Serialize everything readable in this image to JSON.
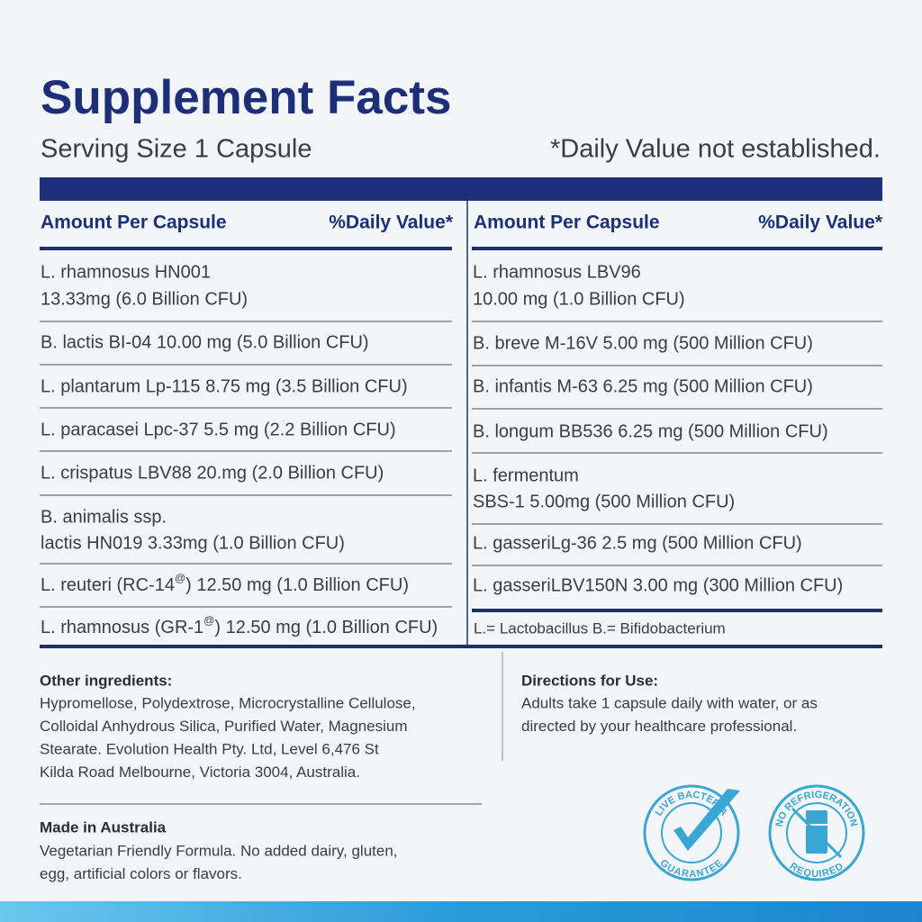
{
  "title": "Supplement Facts",
  "serving_size": "Serving Size 1 Capsule",
  "dv_note": "*Daily Value not established.",
  "columns": [
    {
      "header_amount": "Amount Per Capsule",
      "header_dv": "%Daily Value*",
      "rows": [
        [
          "L. rhamnosus HN001",
          "13.33mg (6.0 Billion CFU)"
        ],
        [
          "B. lactis BI-04 10.00 mg (5.0 Billion CFU)"
        ],
        [
          "L. plantarum Lp-115 8.75 mg (3.5 Billion CFU)"
        ],
        [
          "L. paracasei Lpc-37 5.5 mg (2.2 Billion CFU)"
        ],
        [
          "L. crispatus LBV88 20.mg (2.0 Billion CFU)"
        ],
        [
          "B. animalis ssp.",
          "lactis HN019 3.33mg (1.0 Billion CFU)"
        ],
        [
          [
            "L. reuteri (RC-14",
            "@",
            ") 12.50 mg (1.0 Billion CFU)"
          ]
        ],
        [
          [
            "L. rhamnosus (GR-1",
            "@",
            ") 12.50 mg (1.0 Billion CFU)"
          ]
        ]
      ]
    },
    {
      "header_amount": "Amount Per Capsule",
      "header_dv": "%Daily Value*",
      "rows": [
        [
          "L. rhamnosus LBV96",
          "10.00 mg (1.0 Billion CFU)"
        ],
        [
          "B. breve M-16V 5.00 mg (500 Million CFU)"
        ],
        [
          "B. infantis M-63 6.25 mg (500 Million CFU)"
        ],
        [
          "B. longum BB536 6.25 mg (500 Million CFU)"
        ],
        [
          "L. fermentum",
          "SBS-1 5.00mg (500 Million CFU)"
        ],
        [
          "L. gasseriLg-36 2.5 mg (500 Million CFU)"
        ],
        [
          "L. gasseriLBV150N 3.00 mg (300 Million CFU)"
        ]
      ]
    }
  ],
  "legend": "L.= Lactobacillus  B.= Bifidobacterium",
  "other_ingredients": {
    "heading": "Other ingredients:",
    "lines": [
      "Hypromellose, Polydextrose, Microcrystalline Cellulose,",
      "Colloidal Anhydrous Silica, Purified Water, Magnesium",
      "Stearate. Evolution Health Pty. Ltd, Level 6,476 St",
      "Kilda Road Melbourne, Victoria 3004, Australia."
    ]
  },
  "made_in": {
    "heading": "Made in Australia",
    "lines": [
      "Vegetarian Friendly Formula. No added dairy, gluten,",
      "egg, artificial colors or flavors."
    ]
  },
  "directions": {
    "heading": "Directions for Use:",
    "lines": [
      "Adults take 1 capsule daily with water, or as",
      "directed by your healthcare professional."
    ]
  },
  "badges": [
    {
      "top": "LIVE BACTERIA",
      "bottom": "GUARANTEE"
    },
    {
      "top": "NO REFRIGERATION",
      "bottom": "REQUIRED"
    }
  ]
}
